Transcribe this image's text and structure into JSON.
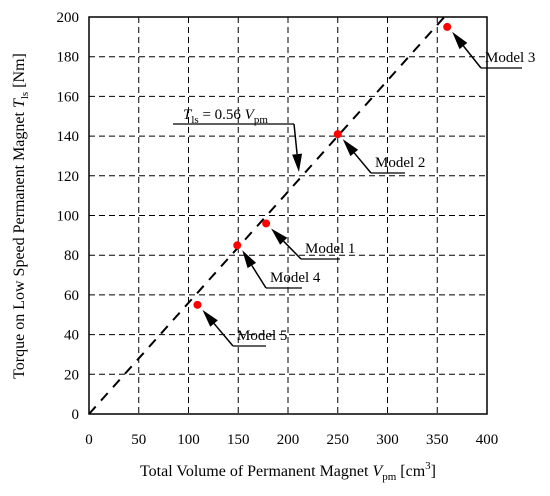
{
  "chart_data": {
    "type": "scatter",
    "xlabel": {
      "main": "Total Volume of Permanent Magnet ",
      "var": "V",
      "sub": "pm",
      "unit_open": " [cm",
      "unit_sup": "3",
      "unit_close": "]"
    },
    "ylabel": {
      "main": "Torque on Low Speed Permanent Magnet ",
      "var": "T",
      "sub": "ls",
      "unit": " [Nm]"
    },
    "xlim": [
      0,
      400
    ],
    "ylim": [
      0,
      200
    ],
    "xticks": [
      0,
      50,
      100,
      150,
      200,
      250,
      300,
      350,
      400
    ],
    "yticks": [
      0,
      20,
      40,
      60,
      80,
      100,
      120,
      140,
      160,
      180,
      200
    ],
    "grid": true,
    "point_color": "#ff0000",
    "points": [
      {
        "name": "Model 1",
        "x": 178,
        "y": 96
      },
      {
        "name": "Model 2",
        "x": 250,
        "y": 141
      },
      {
        "name": "Model 3",
        "x": 360,
        "y": 195
      },
      {
        "name": "Model 4",
        "x": 149,
        "y": 85
      },
      {
        "name": "Model 5",
        "x": 109,
        "y": 55
      }
    ],
    "fit_line": {
      "slope": 0.56,
      "x_range": [
        0,
        357
      ],
      "label": {
        "var": "T",
        "sub": "ls",
        "text": " = 0.56 ",
        "var2": "V",
        "sub2": "pm"
      }
    }
  }
}
